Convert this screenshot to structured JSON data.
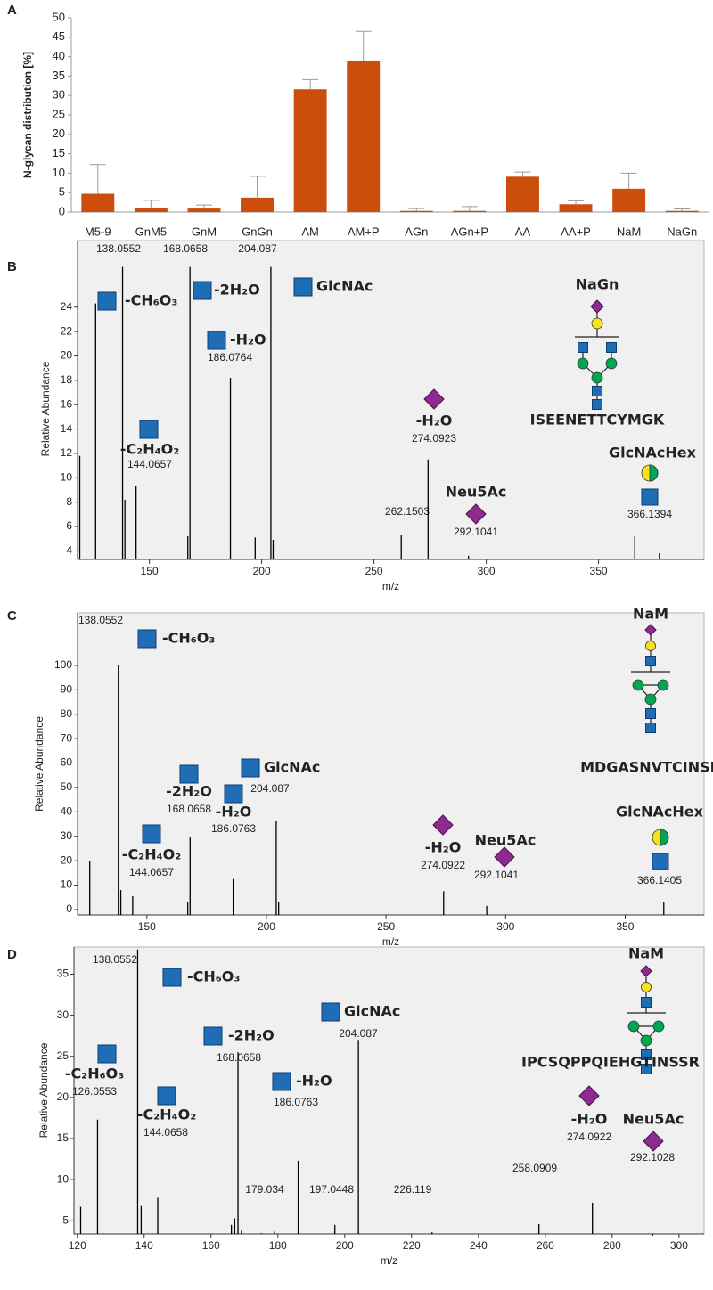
{
  "chart_data": [
    {
      "type": "bar",
      "panel": "A",
      "ylabel": "N-glycan distribution [%]",
      "categories": [
        "M5-9",
        "GnM5",
        "GnM",
        "GnGn",
        "AM",
        "AM+P",
        "AGn",
        "AGn+P",
        "AA",
        "AA+P",
        "NaM",
        "NaGn"
      ],
      "values": [
        4.7,
        1.1,
        0.9,
        3.7,
        31.6,
        39,
        0.3,
        0.3,
        9.1,
        2.0,
        6.0,
        0.3
      ],
      "errors": [
        7.5,
        1.9,
        0.9,
        5.5,
        2.5,
        7.5,
        0.6,
        1.1,
        1.2,
        0.9,
        4.0,
        0.5
      ],
      "color": "#cc4e0c",
      "error_color": "#9a9a9a",
      "ylim": [
        0,
        50
      ],
      "yticks": [
        0,
        5,
        10,
        15,
        20,
        25,
        30,
        35,
        40,
        45,
        50
      ]
    },
    {
      "type": "stem",
      "panel": "B",
      "xlabel": "m/z",
      "ylabel": "Relative Abundance",
      "color": "#000000",
      "x": [
        119,
        126.06,
        138.0552,
        139.1,
        144.0657,
        167.1,
        168.0658,
        186.0764,
        197.1,
        204.087,
        205.1,
        262.1503,
        274.0923,
        292.1041,
        366.1394,
        377.1
      ],
      "values": [
        11.8,
        24.3,
        27.3,
        8.2,
        9.3,
        5.2,
        27.3,
        18.2,
        5.1,
        27.3,
        4.9,
        5.3,
        11.5,
        3.6,
        5.2,
        3.8
      ],
      "xlim": [
        118,
        397
      ],
      "ylim": [
        3.3,
        28
      ],
      "xticks": [
        150,
        200,
        250,
        300,
        350
      ],
      "yticks": [
        4,
        6,
        8,
        10,
        12,
        14,
        16,
        18,
        20,
        22,
        24
      ],
      "annotations": [
        "-CH₆O₃",
        "-2H₂O",
        "GlcNAc",
        "-H₂O",
        "-C₂H₄O₂",
        "-H₂O",
        "Neu5Ac",
        "NaGn",
        "ISEENETTCYMGK",
        "GlcNAcHex"
      ]
    },
    {
      "type": "stem",
      "panel": "C",
      "xlabel": "m/z",
      "ylabel": "Relative Abundance",
      "color": "#000000",
      "x": [
        126.1,
        138.0552,
        139.1,
        144.0657,
        167.1,
        168.0658,
        186.0763,
        204.087,
        205.1,
        274.0922,
        292.1041,
        366.1405
      ],
      "values": [
        20,
        100,
        8,
        5.5,
        3,
        29.5,
        12.5,
        36.5,
        3,
        7.5,
        1.5,
        3
      ],
      "xlim": [
        121,
        383
      ],
      "ylim": [
        -2.2,
        121.5
      ],
      "xticks": [
        150,
        200,
        250,
        300,
        350
      ],
      "yticks": [
        0,
        10,
        20,
        30,
        40,
        50,
        60,
        70,
        80,
        90,
        100
      ],
      "annotations": [
        "-CH₆O₃",
        "-2H₂O",
        "GlcNAc",
        "-H₂O",
        "-C₂H₄O₂",
        "-H₂O",
        "Neu5Ac",
        "NaM",
        "MDGASNVTCINSR",
        "GlcNAcHex"
      ]
    },
    {
      "type": "stem",
      "panel": "D",
      "xlabel": "m/z",
      "ylabel": "Relative Abundance",
      "color": "#000000",
      "x": [
        121,
        126.0553,
        138.0552,
        139.1,
        144.0658,
        166.1,
        167.1,
        168.0658,
        169.1,
        175.1,
        179.034,
        186.0763,
        197.0448,
        204.087,
        226.119,
        258.0909,
        274.0922,
        292.1028
      ],
      "values": [
        6.7,
        17.3,
        38,
        6.8,
        7.8,
        4.5,
        5.3,
        25.5,
        3.8,
        3.5,
        3.7,
        12.3,
        4.5,
        27,
        3.6,
        4.6,
        7.2,
        3.2
      ],
      "xlim": [
        119,
        307.5
      ],
      "ylim": [
        3.4,
        38.3
      ],
      "xticks": [
        120,
        140,
        160,
        180,
        200,
        220,
        240,
        260,
        280,
        300
      ],
      "yticks": [
        5,
        10,
        15,
        20,
        25,
        30,
        35
      ],
      "annotations": [
        "-CH₆O₃",
        "-2H₂O",
        "GlcNAc",
        "-C₂H₆O₃",
        "-C₂H₄O₂",
        "-H₂O",
        "NaM",
        "IPCSQPPQIEHGTINSSR",
        "-H₂O",
        "Neu5Ac"
      ]
    }
  ]
}
